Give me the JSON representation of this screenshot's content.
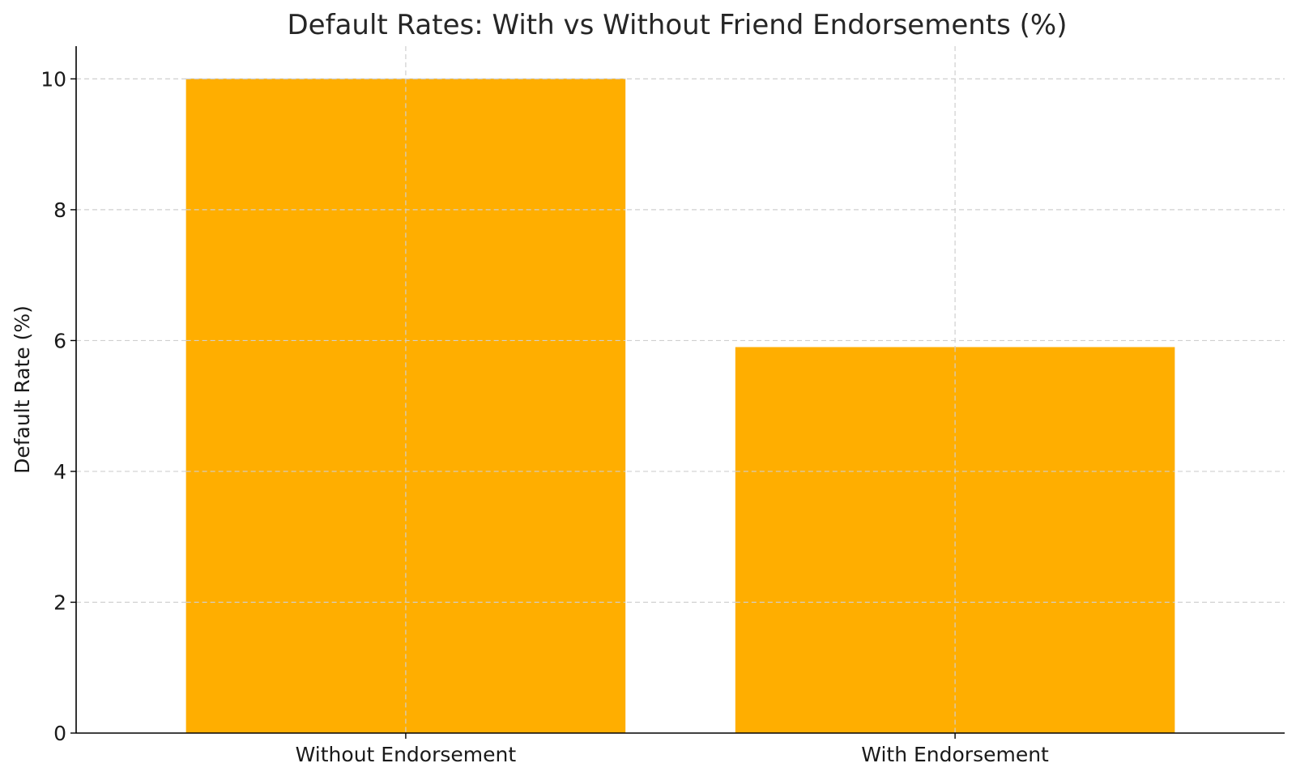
{
  "chart_data": {
    "type": "bar",
    "title": "Default Rates: With vs Without Friend Endorsements (%)",
    "xlabel": "",
    "ylabel": "Default Rate (%)",
    "categories": [
      "Without Endorsement",
      "With Endorsement"
    ],
    "values": [
      10.0,
      5.9
    ],
    "ylim": [
      0,
      10.5
    ],
    "yticks": [
      0,
      2,
      4,
      6,
      8,
      10
    ],
    "ytick_labels": [
      "0",
      "2",
      "4",
      "6",
      "8",
      "10"
    ],
    "grid": true,
    "bar_color": "#FFAE00"
  }
}
